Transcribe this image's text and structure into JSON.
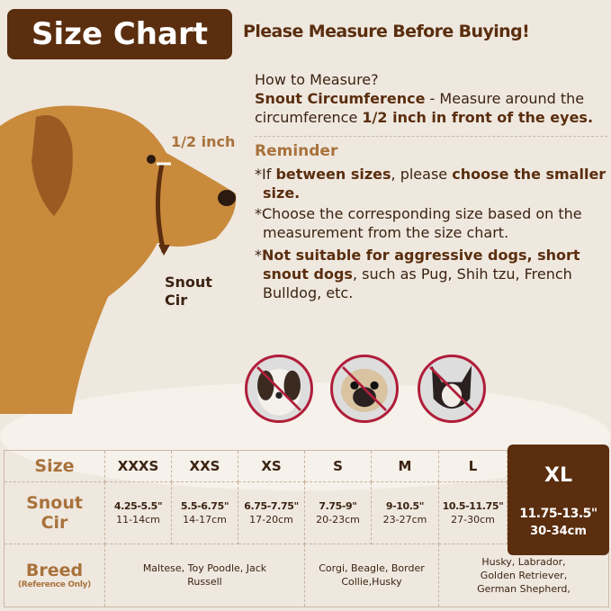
{
  "header": {
    "badge": "Size Chart",
    "title": "Please Measure Before Buying!"
  },
  "info": {
    "how": "How to Measure?",
    "snout_bold": "Snout Circumference",
    "snout_rest": " - Measure around the circumference ",
    "snout_bold2": "1/2 inch in front of the eyes.",
    "reminder": "Reminder",
    "r1a": "*If ",
    "r1b": "between sizes",
    "r1c": ", please ",
    "r1d": "choose the smaller size",
    ".": ".",
    "r1e": ".",
    "r2": "*Choose the corresponding size based on the measurement from the size chart.",
    "r3a": "*",
    "r3b": "Not suitable for aggressive dogs, short snout dogs",
    "r3c": ", such as Pug, Shih tzu, French Bulldog, etc."
  },
  "diagram": {
    "half_inch": "1/2 inch",
    "snout1": "Snout",
    "snout2": "Cir"
  },
  "not_suitable_icons": [
    "shih-tzu",
    "pug",
    "french-bulldog"
  ],
  "table": {
    "row_size": "Size",
    "row_snout1": "Snout",
    "row_snout2": "Cir",
    "row_breed": "Breed",
    "row_breed_note": "(Reference Only)",
    "sizes": [
      "XXXS",
      "XXS",
      "XS",
      "S",
      "M",
      "L"
    ],
    "inches": [
      "4.25-5.5\"",
      "5.5-6.75\"",
      "6.75-7.75\"",
      "7.75-9\"",
      "9-10.5\"",
      "10.5-11.75\""
    ],
    "cm": [
      "11-14cm",
      "14-17cm",
      "17-20cm",
      "20-23cm",
      "23-27cm",
      "27-30cm"
    ],
    "breeds": [
      "Maltese, Toy Poodle, Jack Russell",
      "Corgi, Beagle, Border Collie,Husky",
      "Husky, Labrador, Golden Retriever, German Shepherd,"
    ],
    "xl": {
      "size": "XL",
      "inch": "11.75-13.5\"",
      "cm": "30-34cm"
    }
  },
  "colors": {
    "brown": "#5a2e0e",
    "tan": "#a8723c",
    "bg": "#efe8df",
    "prohibit": "#b01e3a"
  }
}
